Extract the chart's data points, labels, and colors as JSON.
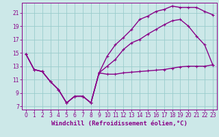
{
  "xlabel": "Windchill (Refroidissement éolien,°C)",
  "bg_color": "#cce8e8",
  "line_color": "#880088",
  "grid_color": "#99cccc",
  "x_ticks": [
    0,
    1,
    2,
    3,
    4,
    5,
    6,
    7,
    8,
    9,
    10,
    11,
    12,
    13,
    14,
    15,
    16,
    17,
    18,
    19,
    20,
    21,
    22,
    23
  ],
  "y_ticks": [
    7,
    9,
    11,
    13,
    15,
    17,
    19,
    21
  ],
  "xlim": [
    -0.5,
    23.5
  ],
  "ylim": [
    6.5,
    22.5
  ],
  "series1_x": [
    0,
    1,
    2,
    3,
    4,
    5,
    6,
    7,
    8,
    9,
    10,
    11,
    12,
    13,
    14,
    15,
    16,
    17,
    18,
    19,
    20,
    21,
    22,
    23
  ],
  "series1_y": [
    14.8,
    12.5,
    12.2,
    10.7,
    9.5,
    7.5,
    8.5,
    8.5,
    7.5,
    12.0,
    11.8,
    11.8,
    12.0,
    12.1,
    12.2,
    12.3,
    12.4,
    12.5,
    12.7,
    12.9,
    13.0,
    13.0,
    13.0,
    13.2
  ],
  "series2_x": [
    0,
    1,
    2,
    3,
    4,
    5,
    6,
    7,
    8,
    9,
    10,
    11,
    12,
    13,
    14,
    15,
    16,
    17,
    18,
    19,
    20,
    21,
    22,
    23
  ],
  "series2_y": [
    14.8,
    12.5,
    12.2,
    10.7,
    9.5,
    7.5,
    8.5,
    8.5,
    7.5,
    12.0,
    13.0,
    14.0,
    15.5,
    16.5,
    17.0,
    17.8,
    18.5,
    19.2,
    19.8,
    20.0,
    19.0,
    17.5,
    16.2,
    13.2
  ],
  "series3_x": [
    0,
    1,
    2,
    3,
    4,
    5,
    6,
    7,
    8,
    9,
    10,
    11,
    12,
    13,
    14,
    15,
    16,
    17,
    18,
    19,
    20,
    21,
    22,
    23
  ],
  "series3_y": [
    14.8,
    12.5,
    12.2,
    10.7,
    9.5,
    7.5,
    8.5,
    8.5,
    7.5,
    12.0,
    14.5,
    16.2,
    17.3,
    18.5,
    20.0,
    20.5,
    21.2,
    21.5,
    22.0,
    21.8,
    21.8,
    21.8,
    21.2,
    20.7
  ],
  "marker": "P",
  "marker_size": 2.5,
  "linewidth": 1.0,
  "xlabel_fontsize": 6.5,
  "tick_fontsize": 5.5
}
